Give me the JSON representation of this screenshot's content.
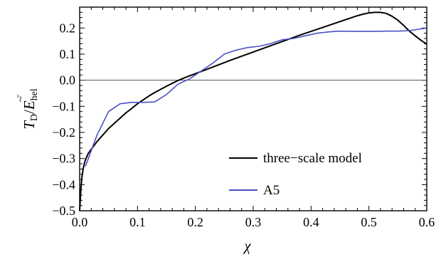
{
  "chart_data": {
    "type": "line",
    "xlabel": "χ",
    "ylabel": {
      "T": "T",
      "T_sub": "D",
      "slash": "/",
      "E": "E",
      "E_sub": "hel"
    },
    "xlim": [
      0.0,
      0.6
    ],
    "ylim": [
      -0.5,
      0.28
    ],
    "xticks": [
      0.0,
      0.1,
      0.2,
      0.3,
      0.4,
      0.5,
      0.6
    ],
    "xtick_labels": [
      "0.0",
      "0.1",
      "0.2",
      "0.3",
      "0.4",
      "0.5",
      "0.6"
    ],
    "yticks": [
      0.2,
      0.1,
      0.0,
      -0.1,
      -0.2,
      -0.3,
      -0.4,
      -0.5
    ],
    "ytick_labels": [
      "0.2",
      "0.1",
      "0.0",
      "−0.1",
      "−0.2",
      "−0.3",
      "−0.4",
      "−0.5"
    ],
    "zero_line": true,
    "grid": false,
    "legend_position": "bottom-right",
    "series": [
      {
        "name": "three−scale model",
        "color": "#000000",
        "x": [
          0.0,
          0.002,
          0.004,
          0.006,
          0.008,
          0.01,
          0.015,
          0.02,
          0.03,
          0.04,
          0.05,
          0.06,
          0.07,
          0.08,
          0.09,
          0.1,
          0.11,
          0.12,
          0.13,
          0.14,
          0.15,
          0.16,
          0.17,
          0.18,
          0.19,
          0.2,
          0.22,
          0.24,
          0.26,
          0.28,
          0.3,
          0.32,
          0.34,
          0.36,
          0.38,
          0.4,
          0.42,
          0.44,
          0.46,
          0.48,
          0.49,
          0.5,
          0.51,
          0.52,
          0.53,
          0.54,
          0.55,
          0.56,
          0.57,
          0.58,
          0.59,
          0.6
        ],
        "y": [
          -0.5,
          -0.42,
          -0.37,
          -0.34,
          -0.32,
          -0.305,
          -0.28,
          -0.265,
          -0.235,
          -0.21,
          -0.185,
          -0.165,
          -0.145,
          -0.125,
          -0.108,
          -0.09,
          -0.075,
          -0.06,
          -0.047,
          -0.035,
          -0.023,
          -0.012,
          -0.001,
          0.008,
          0.017,
          0.025,
          0.042,
          0.059,
          0.076,
          0.092,
          0.108,
          0.124,
          0.14,
          0.156,
          0.172,
          0.187,
          0.202,
          0.217,
          0.232,
          0.247,
          0.253,
          0.258,
          0.26,
          0.26,
          0.256,
          0.245,
          0.23,
          0.21,
          0.188,
          0.17,
          0.153,
          0.138
        ]
      },
      {
        "name": "A5",
        "color": "#4a52c4",
        "x": [
          0.01,
          0.03,
          0.05,
          0.07,
          0.09,
          0.11,
          0.13,
          0.15,
          0.17,
          0.19,
          0.21,
          0.23,
          0.25,
          0.27,
          0.29,
          0.31,
          0.33,
          0.35,
          0.37,
          0.39,
          0.41,
          0.43,
          0.45,
          0.47,
          0.49,
          0.51,
          0.53,
          0.55,
          0.57,
          0.6
        ],
        "y": [
          -0.33,
          -0.21,
          -0.12,
          -0.09,
          -0.085,
          -0.085,
          -0.083,
          -0.055,
          -0.015,
          0.005,
          0.035,
          0.065,
          0.1,
          0.115,
          0.125,
          0.13,
          0.14,
          0.155,
          0.16,
          0.17,
          0.18,
          0.185,
          0.188,
          0.187,
          0.187,
          0.187,
          0.188,
          0.188,
          0.19,
          0.2
        ]
      }
    ]
  }
}
